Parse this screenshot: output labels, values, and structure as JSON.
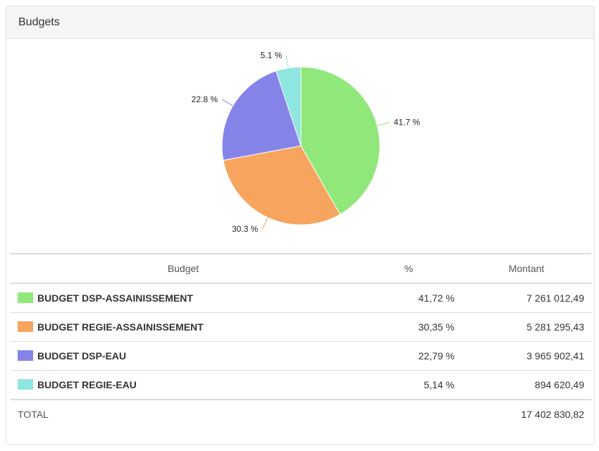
{
  "panel": {
    "title": "Budgets"
  },
  "chart_data": {
    "type": "pie",
    "title": "",
    "slices": [
      {
        "label": "BUDGET DSP-ASSAINISSEMENT",
        "value": 41.7,
        "display": "41.7 %",
        "color": "#90e87a"
      },
      {
        "label": "BUDGET REGIE-ASSAINISSEMENT",
        "value": 30.3,
        "display": "30.3 %",
        "color": "#f6a45e"
      },
      {
        "label": "BUDGET DSP-EAU",
        "value": 22.8,
        "display": "22.8 %",
        "color": "#8484e8"
      },
      {
        "label": "BUDGET REGIE-EAU",
        "value": 5.1,
        "display": "5.1 %",
        "color": "#8fe5e0"
      }
    ]
  },
  "table": {
    "headers": {
      "budget": "Budget",
      "percent": "%",
      "amount": "Montant"
    },
    "rows": [
      {
        "name": "BUDGET DSP-ASSAINISSEMENT",
        "percent": "41,72 %",
        "amount": "7 261 012,49",
        "color": "#90e87a"
      },
      {
        "name": "BUDGET REGIE-ASSAINISSEMENT",
        "percent": "30,35 %",
        "amount": "5 281 295,43",
        "color": "#f6a45e"
      },
      {
        "name": "BUDGET DSP-EAU",
        "percent": "22,79 %",
        "amount": "3 965 902,41",
        "color": "#8484e8"
      },
      {
        "name": "BUDGET REGIE-EAU",
        "percent": "5,14 %",
        "amount": "894 620,49",
        "color": "#8fe5e0"
      }
    ],
    "total": {
      "label": "TOTAL",
      "amount": "17 402 830,82"
    }
  }
}
